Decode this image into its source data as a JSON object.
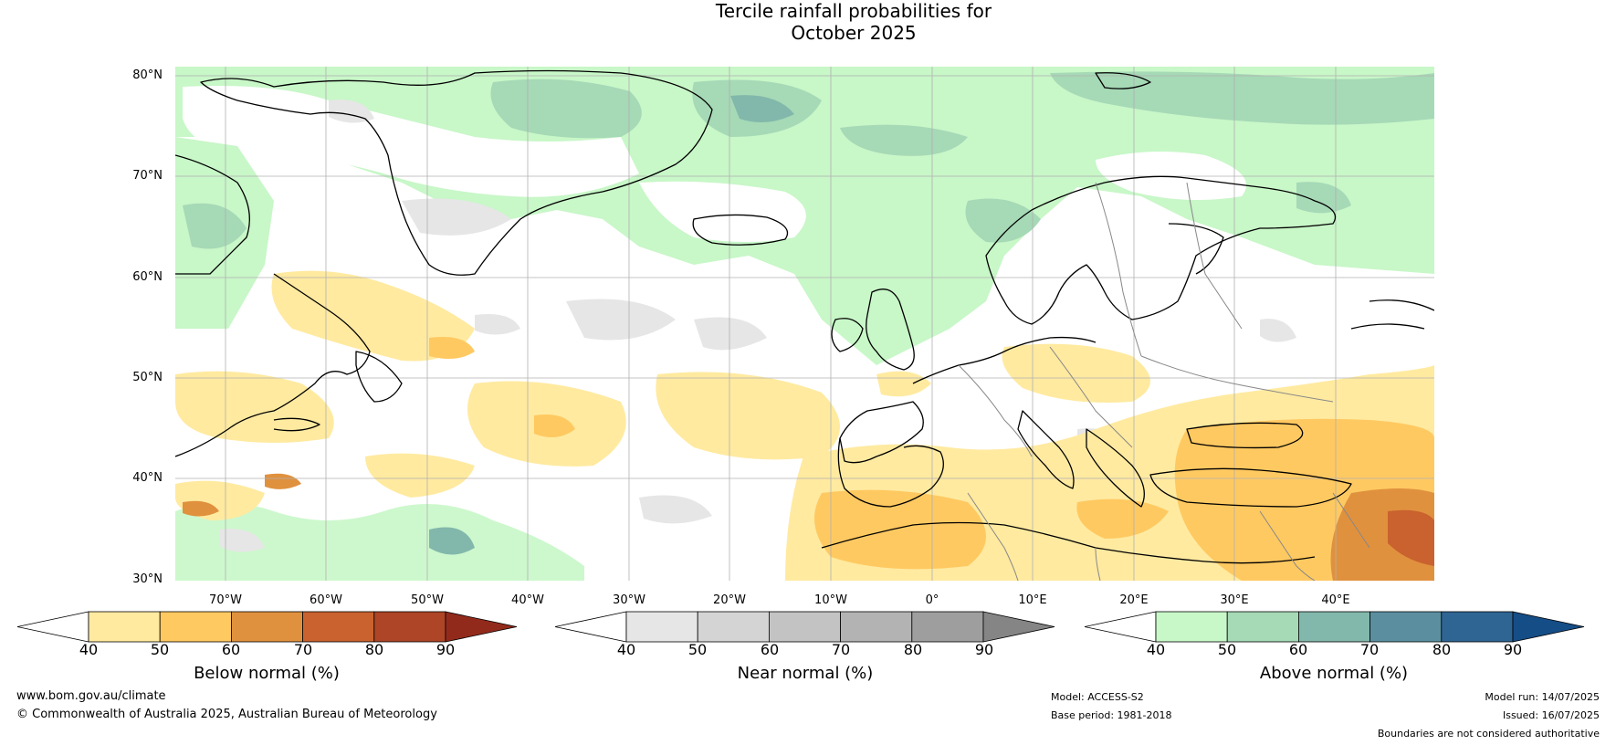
{
  "title": {
    "line1": "Tercile rainfall probabilities for",
    "line2": "October 2025"
  },
  "map": {
    "lat_labels": [
      "80°N",
      "70°N",
      "60°N",
      "50°N",
      "40°N",
      "30°N"
    ],
    "lon_labels": [
      "70°W",
      "60°W",
      "50°W",
      "40°W",
      "30°W",
      "20°W",
      "10°W",
      "0°",
      "10°E",
      "20°E",
      "30°E",
      "40°E"
    ]
  },
  "colorbars": [
    {
      "label": "Below normal (%)",
      "ticks": [
        "40",
        "50",
        "60",
        "70",
        "80",
        "90"
      ],
      "colors": [
        "#ffffff",
        "#ffeaa0",
        "#ffc961",
        "#e0913e",
        "#c9622e",
        "#ad4526",
        "#922a1c"
      ]
    },
    {
      "label": "Near normal (%)",
      "ticks": [
        "40",
        "50",
        "60",
        "70",
        "80",
        "90"
      ],
      "colors": [
        "#ffffff",
        "#e6e6e6",
        "#d4d4d4",
        "#c3c3c3",
        "#b3b3b3",
        "#9e9e9e",
        "#858585"
      ]
    },
    {
      "label": "Above normal (%)",
      "ticks": [
        "40",
        "50",
        "60",
        "70",
        "80",
        "90"
      ],
      "colors": [
        "#ffffff",
        "#c8f7c8",
        "#a6d9b6",
        "#82b8ab",
        "#5b8fa0",
        "#2f6593",
        "#154d86"
      ]
    }
  ],
  "footer": {
    "website": "www.bom.gov.au/climate",
    "copyright": "© Commonwealth of Australia 2025, Australian Bureau of Meteorology",
    "model": "Model: ACCESS-S2",
    "base_period": "Base period: 1981-2018",
    "model_run": "Model run: 14/07/2025",
    "issued": "Issued: 16/07/2025",
    "disclaimer": "Boundaries are not considered authoritative"
  },
  "palette": {
    "above_50": "#c8f7c8",
    "above_60": "#a6d9b6",
    "above_70": "#82b8ab",
    "near_50": "#e6e6e6",
    "below_50": "#ffeaa0",
    "below_60": "#ffc961",
    "below_70": "#e0913e",
    "below_80": "#c9622e",
    "gridline": "#b0b0b0",
    "coast": "#000000",
    "border": "#888888"
  }
}
